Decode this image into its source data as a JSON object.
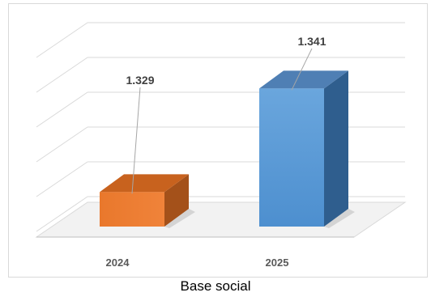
{
  "chart_data": {
    "type": "bar",
    "categories": [
      "2024",
      "2025"
    ],
    "values": [
      1.329,
      1.341
    ],
    "data_labels": [
      "1.329",
      "1.341"
    ],
    "colors": [
      "#ED7D31",
      "#5B9BD5"
    ],
    "grid": true,
    "legend": "none",
    "style": "3d-column"
  },
  "caption": "Base social"
}
